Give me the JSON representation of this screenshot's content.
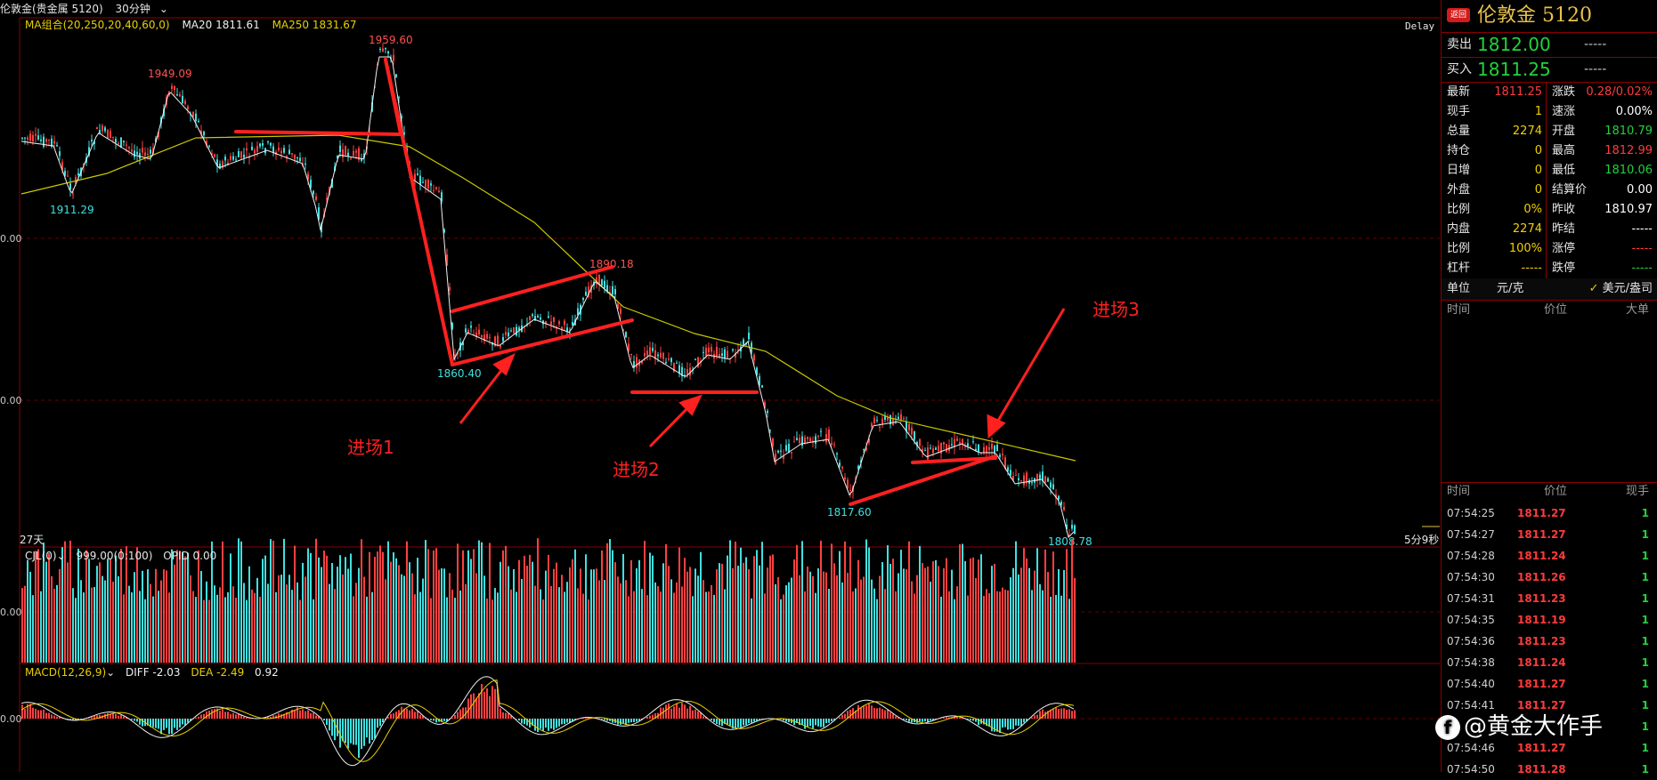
{
  "header": {
    "instrument": "伦敦金(贵金属 5120)",
    "period": "30分钟",
    "period_icon": "chevron-down-icon"
  },
  "ma_row": {
    "ma_group": "MA组合(20,250,20,40,60,0)",
    "ma20": "MA20 1811.61",
    "ma250": "MA250 1831.67"
  },
  "main_chart": {
    "delay": "Delay",
    "days": "27天",
    "countdown": "5分9秒",
    "axis_labels": [
      "0.00",
      "0.00"
    ],
    "price_labels": [
      "1959.60",
      "1949.09",
      "1911.29",
      "1890.18",
      "1860.40",
      "1817.60",
      "1808.78"
    ],
    "annotations": [
      "进场1",
      "进场2",
      "进场3"
    ]
  },
  "volume_panel": {
    "title": "CJL(0)",
    "dropdown_icon": "chevron-down-icon",
    "value": "999.00(0:100)",
    "opid": "OPID 0.00",
    "axis_label": "0.00"
  },
  "macd_panel": {
    "title": "MACD(12,26,9)",
    "dropdown_icon": "chevron-down-icon",
    "diff": "DIFF -2.03",
    "dea": "DEA -2.49",
    "macd": "0.92",
    "axis_label": "0.00"
  },
  "quote_panel": {
    "badge": "返回",
    "name": "伦敦金",
    "code": "5120",
    "sell_label": "卖出",
    "sell_price": "1812.00",
    "sell_vol": "-----",
    "buy_label": "买入",
    "buy_price": "1811.25",
    "buy_vol": "-----",
    "stats": [
      {
        "l1": "最新",
        "v1": "1811.25",
        "l2": "涨跌",
        "v2": "0.28/0.02%"
      },
      {
        "l1": "现手",
        "v1": "1",
        "l2": "速涨",
        "v2": "0.00%"
      },
      {
        "l1": "总量",
        "v1": "2274",
        "l2": "开盘",
        "v2": "1810.79"
      },
      {
        "l1": "持仓",
        "v1": "0",
        "l2": "最高",
        "v2": "1812.99"
      },
      {
        "l1": "日增",
        "v1": "0",
        "l2": "最低",
        "v2": "1810.06"
      },
      {
        "l1": "外盘",
        "v1": "0",
        "l2": "结算价",
        "v2": "0.00"
      },
      {
        "l1": "比例",
        "v1": "0%",
        "l2": "昨收",
        "v2": "1810.97"
      },
      {
        "l1": "内盘",
        "v1": "2274",
        "l2": "昨结",
        "v2": "-----"
      },
      {
        "l1": "比例",
        "v1": "100%",
        "l2": "涨停",
        "v2": "-----"
      },
      {
        "l1": "杠杆",
        "v1": "-----",
        "l2": "跌停",
        "v2": "-----"
      }
    ],
    "stat_colors": {
      "v1": [
        "#ff3b3b",
        "#f0d000",
        "#f0d000",
        "#f0d000",
        "#f0d000",
        "#f0d000",
        "#f0d000",
        "#f0d000",
        "#f0d000",
        "#f0d000"
      ],
      "v2": [
        "#ff3b3b",
        "#ffffff",
        "#22d13b",
        "#ff3b3b",
        "#22d13b",
        "#ffffff",
        "#ffffff",
        "#ffffff",
        "#ff3b3b",
        "#22d13b"
      ]
    },
    "unit_label": "单位",
    "unit_value": "元/克",
    "unit_alt": "美元/盎司",
    "big_orders_header": [
      "时间",
      "价位",
      "大单"
    ],
    "ticks_header": [
      "时间",
      "价位",
      "现手"
    ],
    "ticks": [
      {
        "time": "07:54:25",
        "price": "1811.27",
        "vol": "1"
      },
      {
        "time": "07:54:27",
        "price": "1811.27",
        "vol": "1"
      },
      {
        "time": "07:54:28",
        "price": "1811.24",
        "vol": "1"
      },
      {
        "time": "07:54:30",
        "price": "1811.26",
        "vol": "1"
      },
      {
        "time": "07:54:31",
        "price": "1811.23",
        "vol": "1"
      },
      {
        "time": "07:54:35",
        "price": "1811.19",
        "vol": "1"
      },
      {
        "time": "07:54:36",
        "price": "1811.23",
        "vol": "1"
      },
      {
        "time": "07:54:38",
        "price": "1811.24",
        "vol": "1"
      },
      {
        "time": "07:54:40",
        "price": "1811.27",
        "vol": "1"
      },
      {
        "time": "07:54:41",
        "price": "1811.27",
        "vol": "1"
      },
      {
        "time": "",
        "price": "",
        "vol": "1"
      },
      {
        "time": "07:54:46",
        "price": "1811.27",
        "vol": "1"
      },
      {
        "time": "07:54:50",
        "price": "1811.28",
        "vol": "1"
      }
    ]
  },
  "watermark": "@黄金大作手",
  "colors": {
    "bg": "#000000",
    "up": "#ff4040",
    "down": "#40e0e0",
    "ma": "#ffffff",
    "ma250": "#c8c800",
    "draw": "#ff2020"
  },
  "chart_data": {
    "type": "candlestick",
    "title": "伦敦金(贵金属 5120) 30分钟",
    "key_prices": [
      1949.09,
      1911.29,
      1959.6,
      1860.4,
      1890.18,
      1817.6,
      1808.78
    ],
    "ma": {
      "MA20": 1811.61,
      "MA250": 1831.67
    },
    "macd": {
      "DIFF": -2.03,
      "DEA": -2.49,
      "MACD": 0.92
    }
  }
}
